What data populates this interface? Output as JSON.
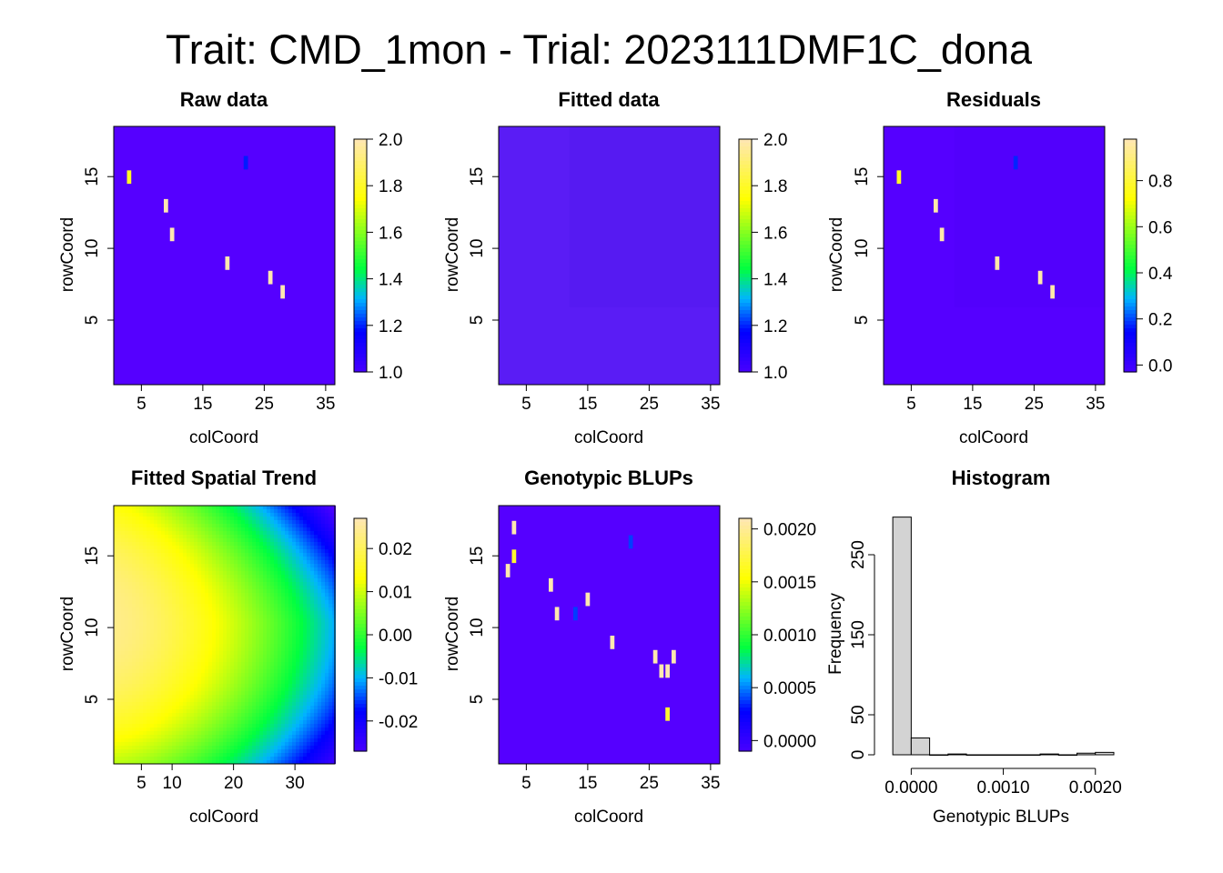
{
  "figure_title": "Trait: CMD_1mon - Trial: 2023111DMF1C_dona",
  "colors": {
    "background": "#ffffff",
    "base_cell": "#5500ff",
    "fitted_cell": "#5a1cf5",
    "hist_bar": "#d3d3d3",
    "palette": [
      "#4b00ff",
      "#0000ff",
      "#00b4ff",
      "#00ff40",
      "#ffff00",
      "#ffe7b0"
    ]
  },
  "chart_data": [
    {
      "id": "raw",
      "type": "heatmap",
      "title": "Raw data",
      "xlabel": "colCoord",
      "ylabel": "rowCoord",
      "xlim": [
        0.5,
        36.5
      ],
      "ylim": [
        0.5,
        18.5
      ],
      "x_ticks": [
        "5",
        "15",
        "25",
        "35"
      ],
      "y_ticks": [
        "5",
        "10",
        "15"
      ],
      "zlim": [
        1.0,
        2.0
      ],
      "colorbar_ticks": [
        "1.0",
        "1.2",
        "1.4",
        "1.6",
        "1.8",
        "2.0"
      ],
      "background_value": 1.0,
      "cells": [
        {
          "x": 3,
          "y": 15,
          "value": 1.8
        },
        {
          "x": 9,
          "y": 13,
          "value": 2.0
        },
        {
          "x": 10,
          "y": 11,
          "value": 2.0
        },
        {
          "x": 19,
          "y": 9,
          "value": 2.0
        },
        {
          "x": 22,
          "y": 16,
          "value": 1.2
        },
        {
          "x": 26,
          "y": 8,
          "value": 2.0
        },
        {
          "x": 28,
          "y": 7,
          "value": 2.0
        }
      ]
    },
    {
      "id": "fitted",
      "type": "heatmap",
      "title": "Fitted data",
      "xlabel": "colCoord",
      "ylabel": "rowCoord",
      "xlim": [
        0.5,
        36.5
      ],
      "ylim": [
        0.5,
        18.5
      ],
      "x_ticks": [
        "5",
        "15",
        "25",
        "35"
      ],
      "y_ticks": [
        "5",
        "10",
        "15"
      ],
      "zlim": [
        1.0,
        2.0
      ],
      "colorbar_ticks": [
        "1.0",
        "1.2",
        "1.4",
        "1.6",
        "1.8",
        "2.0"
      ],
      "background_value": 1.0,
      "cells": []
    },
    {
      "id": "residuals",
      "type": "heatmap",
      "title": "Residuals",
      "xlabel": "colCoord",
      "ylabel": "rowCoord",
      "xlim": [
        0.5,
        36.5
      ],
      "ylim": [
        0.5,
        18.5
      ],
      "x_ticks": [
        "5",
        "15",
        "25",
        "35"
      ],
      "y_ticks": [
        "5",
        "10",
        "15"
      ],
      "zlim": [
        -0.03,
        0.98
      ],
      "colorbar_ticks": [
        "0.0",
        "0.2",
        "0.4",
        "0.6",
        "0.8"
      ],
      "background_value": 0.0,
      "cells": [
        {
          "x": 3,
          "y": 15,
          "value": 0.78
        },
        {
          "x": 9,
          "y": 13,
          "value": 0.97
        },
        {
          "x": 10,
          "y": 11,
          "value": 0.97
        },
        {
          "x": 19,
          "y": 9,
          "value": 0.97
        },
        {
          "x": 22,
          "y": 16,
          "value": 0.18
        },
        {
          "x": 26,
          "y": 8,
          "value": 0.97
        },
        {
          "x": 28,
          "y": 7,
          "value": 0.97
        }
      ]
    },
    {
      "id": "trend",
      "type": "heatmap",
      "title": "Fitted Spatial Trend",
      "xlabel": "colCoord",
      "ylabel": "rowCoord",
      "xlim": [
        0.5,
        36.5
      ],
      "ylim": [
        0.5,
        18.5
      ],
      "x_ticks": [
        "5",
        "10",
        "20",
        "30"
      ],
      "y_ticks": [
        "5",
        "10",
        "15"
      ],
      "zlim": [
        -0.027,
        0.027
      ],
      "colorbar_ticks": [
        "-0.02",
        "-0.01",
        "0.00",
        "0.01",
        "0.02"
      ],
      "surface": "smooth spatial trend, highest at upper left, lowest at upper right"
    },
    {
      "id": "blups",
      "type": "heatmap",
      "title": "Genotypic BLUPs",
      "xlabel": "colCoord",
      "ylabel": "rowCoord",
      "xlim": [
        0.5,
        36.5
      ],
      "ylim": [
        0.5,
        18.5
      ],
      "x_ticks": [
        "5",
        "15",
        "25",
        "35"
      ],
      "y_ticks": [
        "5",
        "10",
        "15"
      ],
      "zlim": [
        -0.0001,
        0.0021
      ],
      "colorbar_ticks": [
        "0.0000",
        "0.0005",
        "0.0010",
        "0.0015",
        "0.0020"
      ],
      "background_value": 0.0,
      "cells": [
        {
          "x": 3,
          "y": 17,
          "value": 0.0021
        },
        {
          "x": 3,
          "y": 15,
          "value": 0.0017
        },
        {
          "x": 2,
          "y": 14,
          "value": 0.0021
        },
        {
          "x": 9,
          "y": 13,
          "value": 0.0021
        },
        {
          "x": 15,
          "y": 12,
          "value": 0.0021
        },
        {
          "x": 10,
          "y": 11,
          "value": 0.0021
        },
        {
          "x": 13,
          "y": 11,
          "value": 0.0004
        },
        {
          "x": 19,
          "y": 9,
          "value": 0.0021
        },
        {
          "x": 22,
          "y": 16,
          "value": 0.0004
        },
        {
          "x": 26,
          "y": 8,
          "value": 0.0021
        },
        {
          "x": 29,
          "y": 8,
          "value": 0.0021
        },
        {
          "x": 27,
          "y": 7,
          "value": 0.0021
        },
        {
          "x": 28,
          "y": 7,
          "value": 0.0021
        },
        {
          "x": 28,
          "y": 4,
          "value": 0.0017
        }
      ]
    },
    {
      "id": "histogram",
      "type": "bar",
      "title": "Histogram",
      "xlabel": "Genotypic BLUPs",
      "ylabel": "Frequency",
      "xlim": [
        -0.0003,
        0.0022
      ],
      "ylim": [
        0,
        300
      ],
      "x_ticks": [
        {
          "value": 0,
          "label": "0.0000"
        },
        {
          "value": 0.001,
          "label": "0.0010"
        },
        {
          "value": 0.002,
          "label": "0.0020"
        }
      ],
      "y_ticks": [
        {
          "value": 0,
          "label": "0"
        },
        {
          "value": 50,
          "label": "50"
        },
        {
          "value": 150,
          "label": "150"
        },
        {
          "value": 250,
          "label": "250"
        }
      ],
      "bin_width": 0.0002,
      "bin_start": -0.0002,
      "counts": [
        297,
        21,
        0,
        1,
        0,
        0,
        0,
        0,
        1,
        0,
        2,
        3
      ]
    }
  ]
}
